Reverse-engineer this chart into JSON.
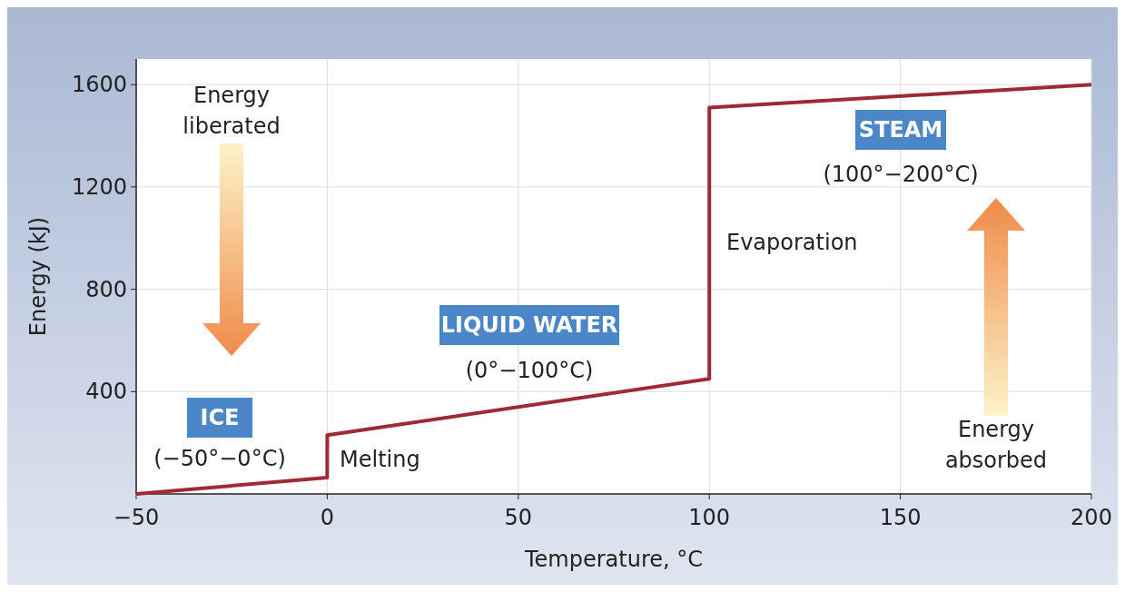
{
  "chart_data": {
    "type": "line",
    "xlabel": "Temperature, °C",
    "ylabel": "Energy (kJ)",
    "x": [
      -50,
      0,
      0,
      100,
      100,
      200
    ],
    "series": [
      {
        "color": "#9e2a35",
        "values": [
          0,
          64,
          230,
          450,
          1510,
          1600
        ]
      }
    ],
    "xlim": [
      -50,
      200
    ],
    "ylim": [
      0,
      1700
    ],
    "xticks": [
      {
        "value": -50,
        "label": "−50"
      },
      0,
      50,
      100,
      150,
      200
    ],
    "yticks": [
      400,
      800,
      1200,
      1600
    ],
    "grid": true,
    "marker": "none",
    "line_style": "solid",
    "annotations": [
      "ICE",
      "(−50°−0°C)",
      "LIQUID WATER",
      "(0°−100°C)",
      "STEAM",
      "(100°−200°C)",
      "Melting",
      "Evaporation",
      "Energy liberated",
      "Energy absorbed"
    ]
  }
}
